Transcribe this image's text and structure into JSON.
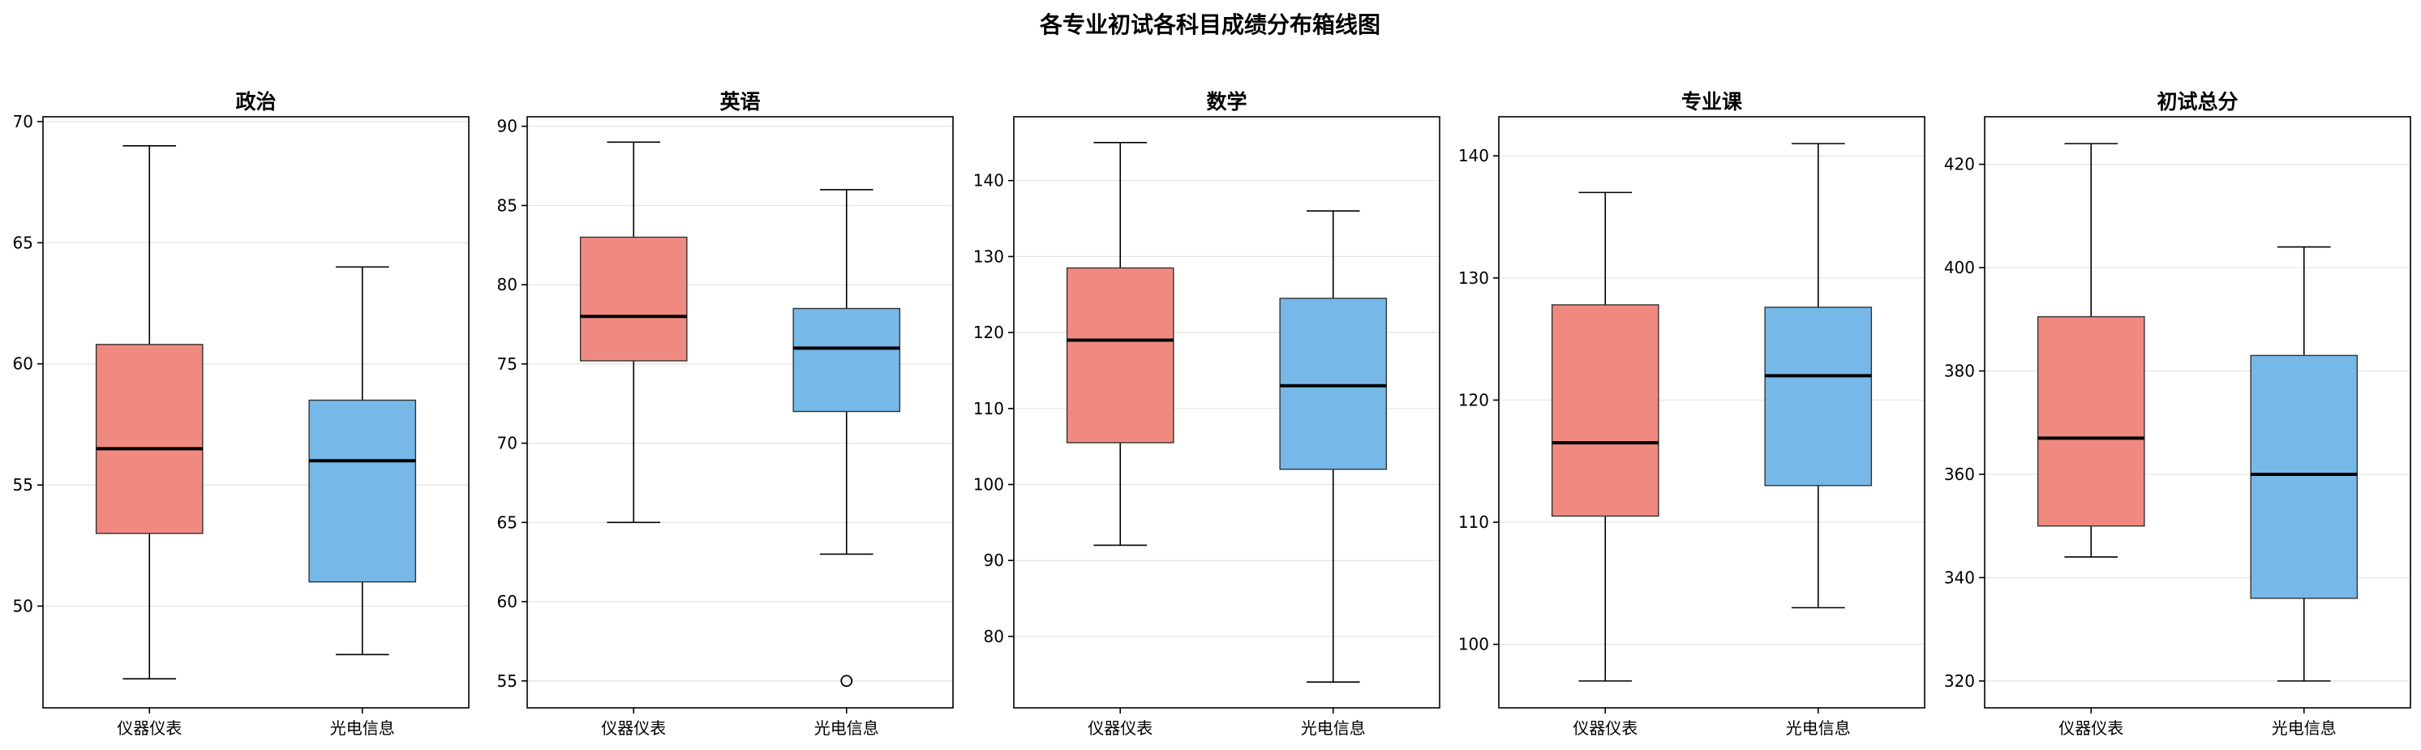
{
  "title": "各专业初试各科目成绩分布箱线图",
  "colors": {
    "仪器仪表": "#f08a80",
    "光电信息": "#76b8e8"
  },
  "chart_data": [
    {
      "type": "box",
      "title": "政治",
      "categories": [
        "仪器仪表",
        "光电信息"
      ],
      "ylim": [
        45.8,
        70.2
      ],
      "yticks": [
        50,
        55,
        60,
        65,
        70
      ],
      "grid": true,
      "boxes": [
        {
          "name": "仪器仪表",
          "min": 47,
          "q1": 53,
          "median": 56.5,
          "q3": 60.8,
          "max": 69,
          "outliers": []
        },
        {
          "name": "光电信息",
          "min": 48,
          "q1": 51,
          "median": 56,
          "q3": 58.5,
          "max": 64,
          "outliers": []
        }
      ]
    },
    {
      "type": "box",
      "title": "英语",
      "categories": [
        "仪器仪表",
        "光电信息"
      ],
      "ylim": [
        53.3,
        90.6
      ],
      "yticks": [
        55,
        60,
        65,
        70,
        75,
        80,
        85,
        90
      ],
      "grid": true,
      "boxes": [
        {
          "name": "仪器仪表",
          "min": 65,
          "q1": 75.2,
          "median": 78,
          "q3": 83,
          "max": 89,
          "outliers": []
        },
        {
          "name": "光电信息",
          "min": 63,
          "q1": 72,
          "median": 76,
          "q3": 78.5,
          "max": 86,
          "outliers": [
            55
          ]
        }
      ]
    },
    {
      "type": "box",
      "title": "数学",
      "categories": [
        "仪器仪表",
        "光电信息"
      ],
      "ylim": [
        70.6,
        148.4
      ],
      "yticks": [
        80,
        90,
        100,
        110,
        120,
        130,
        140
      ],
      "grid": true,
      "boxes": [
        {
          "name": "仪器仪表",
          "min": 92,
          "q1": 105.5,
          "median": 119,
          "q3": 128.5,
          "max": 145,
          "outliers": []
        },
        {
          "name": "光电信息",
          "min": 74,
          "q1": 102,
          "median": 113,
          "q3": 124.5,
          "max": 136,
          "outliers": []
        }
      ]
    },
    {
      "type": "box",
      "title": "专业课",
      "categories": [
        "仪器仪表",
        "光电信息"
      ],
      "ylim": [
        94.8,
        143.2
      ],
      "yticks": [
        100,
        110,
        120,
        130,
        140
      ],
      "grid": true,
      "boxes": [
        {
          "name": "仪器仪表",
          "min": 97,
          "q1": 110.5,
          "median": 116.5,
          "q3": 127.8,
          "max": 137,
          "outliers": []
        },
        {
          "name": "光电信息",
          "min": 103,
          "q1": 113,
          "median": 122,
          "q3": 127.6,
          "max": 141,
          "outliers": []
        }
      ]
    },
    {
      "type": "box",
      "title": "初试总分",
      "categories": [
        "仪器仪表",
        "光电信息"
      ],
      "ylim": [
        314.8,
        429.2
      ],
      "yticks": [
        320,
        340,
        360,
        380,
        400,
        420
      ],
      "grid": true,
      "boxes": [
        {
          "name": "仪器仪表",
          "min": 344,
          "q1": 350,
          "median": 367,
          "q3": 390.5,
          "max": 424,
          "outliers": []
        },
        {
          "name": "光电信息",
          "min": 320,
          "q1": 336,
          "median": 360,
          "q3": 383,
          "max": 404,
          "outliers": []
        }
      ]
    }
  ]
}
